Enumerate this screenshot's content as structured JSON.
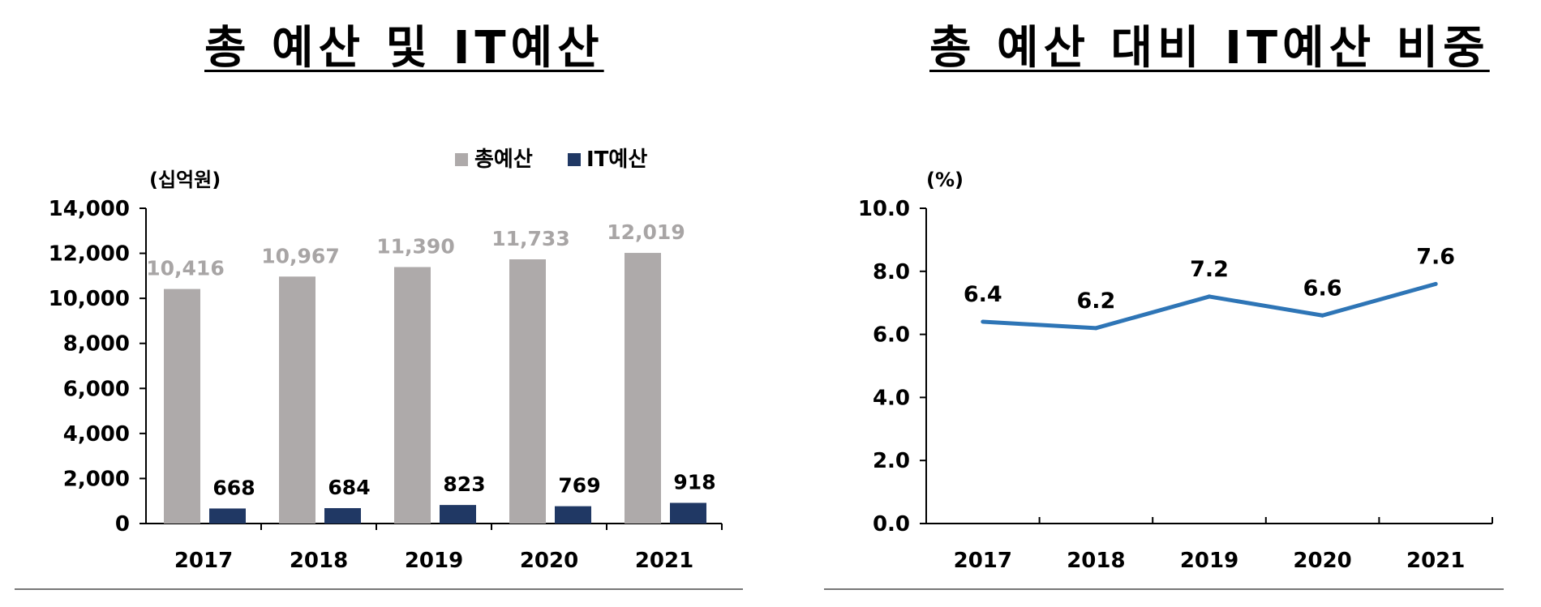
{
  "chart_data": [
    {
      "type": "bar",
      "title": "총 예산 및 IT예산",
      "unit_label": "(십억원)",
      "categories": [
        "2017",
        "2018",
        "2019",
        "2020",
        "2021"
      ],
      "series": [
        {
          "name": "총예산",
          "values": [
            10416,
            10967,
            11390,
            11733,
            12019
          ],
          "labels": [
            "10,416",
            "10,967",
            "11,390",
            "11,733",
            "12,019"
          ],
          "color": "#aeaaaa"
        },
        {
          "name": "IT예산",
          "values": [
            668,
            684,
            823,
            769,
            918
          ],
          "labels": [
            "668",
            "684",
            "823",
            "769",
            "918"
          ],
          "color": "#203864"
        }
      ],
      "ylim": [
        0,
        14000
      ],
      "yticks": [
        "0",
        "2,000",
        "4,000",
        "6,000",
        "8,000",
        "10,000",
        "12,000",
        "14,000"
      ],
      "legend": "top",
      "grid": false
    },
    {
      "type": "line",
      "title": "총 예산 대비 IT예산 비중",
      "unit_label": "(%)",
      "categories": [
        "2017",
        "2018",
        "2019",
        "2020",
        "2021"
      ],
      "series": [
        {
          "values": [
            6.4,
            6.2,
            7.2,
            6.6,
            7.6
          ],
          "labels": [
            "6.4",
            "6.2",
            "7.2",
            "6.6",
            "7.6"
          ],
          "color": "#2e75b6"
        }
      ],
      "ylim": [
        0,
        10
      ],
      "yticks": [
        "0.0",
        "2.0",
        "4.0",
        "6.0",
        "8.0",
        "10.0"
      ],
      "grid": false
    }
  ]
}
